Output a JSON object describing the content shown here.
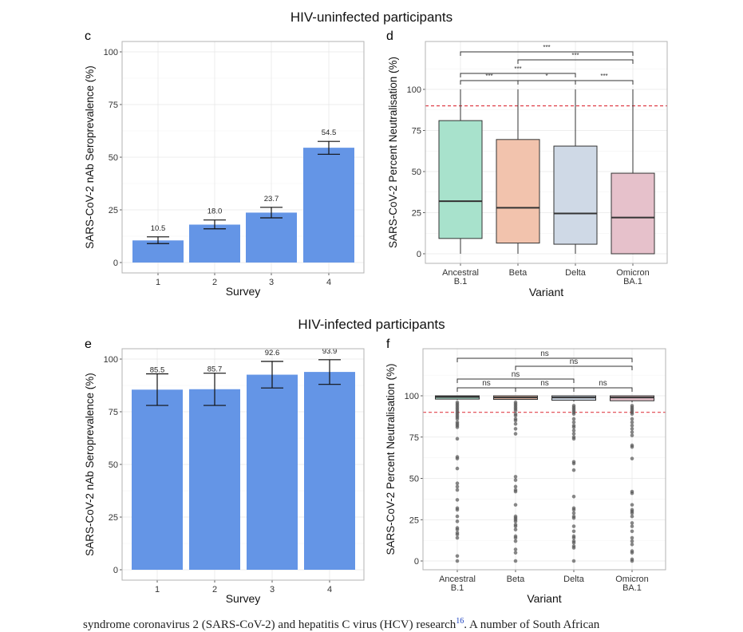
{
  "sections": {
    "top_title": "HIV-uninfected participants",
    "bottom_title": "HIV-infected participants"
  },
  "caption": {
    "text": "syndrome coronavirus 2 (SARS-CoV-2) and hepatitis C virus (HCV) research",
    "ref": "16",
    "text_after": ". A number of South African"
  },
  "colors": {
    "bar": "#6495e6",
    "threshold": "#e0424b",
    "ancestral": "#a8e2cc",
    "beta": "#f2c3ad",
    "delta": "#cfd9e6",
    "omicron": "#e6c1cb",
    "point": "#555555"
  },
  "chart_data": [
    {
      "panel": "c",
      "type": "bar",
      "title": "",
      "xlabel": "Survey",
      "ylabel": "SARS-CoV-2 nAb Seroprevalence (%)",
      "categories": [
        "1",
        "2",
        "3",
        "4"
      ],
      "values": [
        10.5,
        18.0,
        23.7,
        54.5
      ],
      "labels": [
        "10.5",
        "18.0",
        "23.7",
        "54.5"
      ],
      "error_low": [
        9.0,
        16.0,
        21.2,
        51.4
      ],
      "error_high": [
        12.2,
        20.2,
        26.2,
        57.5
      ],
      "yticks": [
        0,
        25,
        50,
        75,
        100
      ],
      "ytick_labels": [
        "0",
        "25",
        "50",
        "75",
        "100"
      ],
      "ylim": [
        -4,
        105
      ],
      "grid": true
    },
    {
      "panel": "d",
      "type": "box",
      "xlabel": "Variant",
      "ylabel": "SARS-CoV-2 Percent Neutralisation (%)",
      "categories": [
        "Ancestral\nB.1",
        "Beta",
        "Delta",
        "Omicron\nBA.1"
      ],
      "category_lines": [
        [
          "Ancestral",
          "B.1"
        ],
        [
          "Beta"
        ],
        [
          "Delta"
        ],
        [
          "Omicron",
          "BA.1"
        ]
      ],
      "boxes": [
        {
          "name": "Ancestral B.1",
          "min": 0,
          "q1": 9.3,
          "median": 32.0,
          "q3": 81.0,
          "max": 100,
          "color_key": "ancestral"
        },
        {
          "name": "Beta",
          "min": 0,
          "q1": 6.5,
          "median": 28.0,
          "q3": 69.5,
          "max": 100,
          "color_key": "beta"
        },
        {
          "name": "Delta",
          "min": 0,
          "q1": 5.8,
          "median": 24.5,
          "q3": 65.5,
          "max": 100,
          "color_key": "delta"
        },
        {
          "name": "Omicron BA.1",
          "min": 0,
          "q1": 0,
          "median": 22.0,
          "q3": 49.0,
          "max": 100,
          "color_key": "omicron"
        }
      ],
      "threshold": 90,
      "comparisons": [
        {
          "from": 0,
          "to": 1,
          "level": 0,
          "label": "***"
        },
        {
          "from": 1,
          "to": 2,
          "level": 0,
          "label": "*"
        },
        {
          "from": 2,
          "to": 3,
          "level": 0,
          "label": "***"
        },
        {
          "from": 0,
          "to": 2,
          "level": 1,
          "label": "***"
        },
        {
          "from": 1,
          "to": 3,
          "level": 2,
          "label": "***"
        },
        {
          "from": 0,
          "to": 3,
          "level": 3,
          "label": "***"
        }
      ],
      "yticks": [
        0,
        25,
        50,
        75,
        100
      ],
      "ytick_labels": [
        "0",
        "25",
        "50",
        "75",
        "100"
      ],
      "ylim": [
        -5,
        128
      ],
      "grid": true
    },
    {
      "panel": "e",
      "type": "bar",
      "xlabel": "Survey",
      "ylabel": "SARS-CoV-2 nAb Seroprevalence (%)",
      "categories": [
        "1",
        "2",
        "3",
        "4"
      ],
      "values": [
        85.5,
        85.7,
        92.6,
        93.9
      ],
      "labels": [
        "85.5",
        "85.7",
        "92.6",
        "93.9"
      ],
      "error_low": [
        78.0,
        78.0,
        86.3,
        88.0
      ],
      "error_high": [
        93.0,
        93.3,
        98.9,
        99.7
      ],
      "yticks": [
        0,
        25,
        50,
        75,
        100
      ],
      "ytick_labels": [
        "0",
        "25",
        "50",
        "75",
        "100"
      ],
      "ylim": [
        -4,
        105
      ],
      "grid": true
    },
    {
      "panel": "f",
      "type": "box",
      "xlabel": "Variant",
      "ylabel": "SARS-CoV-2 Percent Neutralisation (%)",
      "categories": [
        "Ancestral\nB.1",
        "Beta",
        "Delta",
        "Omicron\nBA.1"
      ],
      "category_lines": [
        [
          "Ancestral",
          "B.1"
        ],
        [
          "Beta"
        ],
        [
          "Delta"
        ],
        [
          "Omicron",
          "BA.1"
        ]
      ],
      "boxes": [
        {
          "name": "Ancestral B.1",
          "min": 97.5,
          "q1": 98.0,
          "median": 99.3,
          "q3": 100,
          "max": 100,
          "color_key": "ancestral",
          "outliers": [
            96,
            95,
            94,
            93,
            92,
            91,
            90,
            89,
            88,
            87,
            86,
            84,
            83,
            82,
            81,
            74,
            63,
            62,
            56,
            47,
            45,
            43,
            37,
            32,
            31,
            27,
            24,
            20,
            19,
            17,
            16,
            14,
            3,
            0
          ]
        },
        {
          "name": "Beta",
          "min": 97.5,
          "q1": 97.8,
          "median": 99.0,
          "q3": 100,
          "max": 100,
          "color_key": "beta",
          "outliers": [
            96,
            95,
            94,
            93,
            92,
            91,
            89,
            88,
            86,
            85,
            83,
            80,
            77,
            51,
            49,
            45,
            43,
            42,
            34,
            27,
            26,
            25,
            24,
            22,
            21,
            19,
            15,
            14,
            12,
            7,
            5,
            0
          ]
        },
        {
          "name": "Delta",
          "min": 96.5,
          "q1": 97.3,
          "median": 99.0,
          "q3": 100,
          "max": 100,
          "color_key": "delta",
          "outliers": [
            94,
            93,
            92,
            91,
            90,
            89,
            86,
            84,
            82,
            81,
            79,
            77,
            75,
            74,
            60,
            59,
            55,
            39,
            32,
            31,
            29,
            27,
            26,
            21,
            18,
            15,
            14,
            12,
            11,
            9,
            8,
            0
          ]
        },
        {
          "name": "Omicron BA.1",
          "min": 96.0,
          "q1": 97.0,
          "median": 99.0,
          "q3": 100,
          "max": 100,
          "color_key": "omicron",
          "outliers": [
            94,
            93,
            92,
            91,
            90,
            89,
            86,
            84,
            82,
            80,
            78,
            76,
            70,
            69,
            62,
            42,
            41,
            34,
            31,
            30,
            29,
            27,
            23,
            21,
            18,
            14,
            12,
            10,
            6,
            5,
            1,
            0
          ]
        }
      ],
      "threshold": 90,
      "comparisons": [
        {
          "from": 0,
          "to": 1,
          "level": 0,
          "label": "ns"
        },
        {
          "from": 1,
          "to": 2,
          "level": 0,
          "label": "ns"
        },
        {
          "from": 2,
          "to": 3,
          "level": 0,
          "label": "ns"
        },
        {
          "from": 0,
          "to": 2,
          "level": 1,
          "label": "ns"
        },
        {
          "from": 1,
          "to": 3,
          "level": 2,
          "label": "ns"
        },
        {
          "from": 0,
          "to": 3,
          "level": 3,
          "label": "ns"
        }
      ],
      "yticks": [
        0,
        25,
        50,
        75,
        100
      ],
      "ytick_labels": [
        "0",
        "25",
        "50",
        "75",
        "100"
      ],
      "ylim": [
        -5,
        128
      ],
      "grid": true
    }
  ],
  "panel_letters": [
    "c",
    "d",
    "e",
    "f"
  ]
}
